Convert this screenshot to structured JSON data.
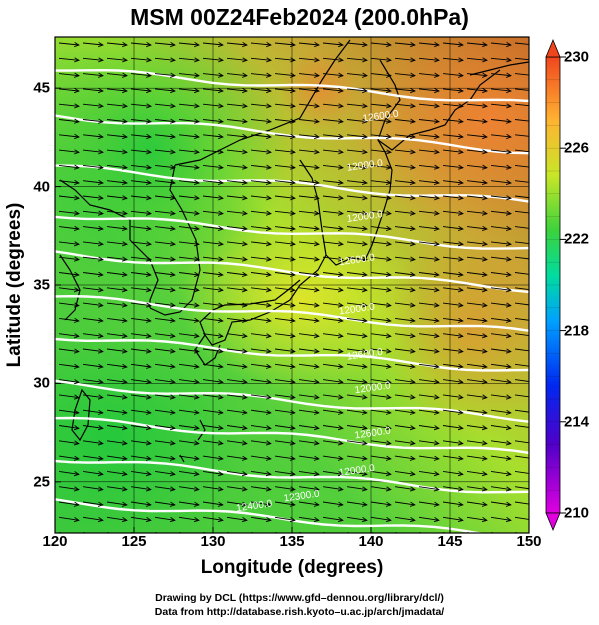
{
  "title": "MSM 00Z24Feb2024 (200.0hPa)",
  "chart_data": {
    "type": "map",
    "xlabel": "Longitude (degrees)",
    "ylabel": "Latitude  (degrees)",
    "xlim": [
      120,
      150
    ],
    "ylim": [
      22.4,
      47.6
    ],
    "x_ticks": [
      "120",
      "125",
      "130",
      "135",
      "140",
      "145",
      "150"
    ],
    "y_ticks": [
      "25",
      "30",
      "35",
      "40",
      "45"
    ],
    "colorbar": {
      "range": [
        210,
        230
      ],
      "ticks": [
        "210",
        "214",
        "218",
        "222",
        "226",
        "230"
      ],
      "colors": [
        "#e000e0",
        "#5000c8",
        "#0028f0",
        "#00c8ff",
        "#00dc78",
        "#3cd23c",
        "#c8e628",
        "#ffb432",
        "#f0461e"
      ]
    },
    "contours": [
      {
        "label": "12000.0",
        "lat": 26.0
      },
      {
        "label": "12000.0",
        "lat": 29.5
      },
      {
        "label": "12000.0",
        "lat": 32.5
      },
      {
        "label": "12000.0",
        "lat": 34.2
      },
      {
        "label": "12000.0",
        "lat": 36.4
      },
      {
        "label": "12000.0",
        "lat": 38.0
      },
      {
        "label": "12000.0",
        "lat": 40.6
      },
      {
        "label": "12000.0",
        "lat": 43.2
      },
      {
        "label": "11600.0",
        "lat": 45.8
      },
      {
        "label": "12600.0",
        "lat": 34.0
      },
      {
        "label": "12000.0",
        "lat": 31.0
      },
      {
        "label": "12600.0",
        "lat": 28.5
      },
      {
        "label": "12300.0",
        "lat": 25.0
      },
      {
        "label": "12400.0",
        "lat": 23.0
      },
      {
        "label": "12400.0",
        "lat": 24.5
      }
    ],
    "contour_text": [
      "12600.0",
      "12000.0",
      "12000.0",
      "12600.0",
      "12000.0",
      "12600.0",
      "12000.0",
      "12600.0",
      "12000.0",
      "12300.0",
      "12400.0"
    ],
    "wind_direction": "westerly (west to east)",
    "grid": true
  },
  "credits": {
    "line1": "Drawing by DCL (https://www.gfd–dennou.org/library/dcl/)",
    "line2": "Data from http://database.rish.kyoto–u.ac.jp/arch/jmadata/"
  }
}
